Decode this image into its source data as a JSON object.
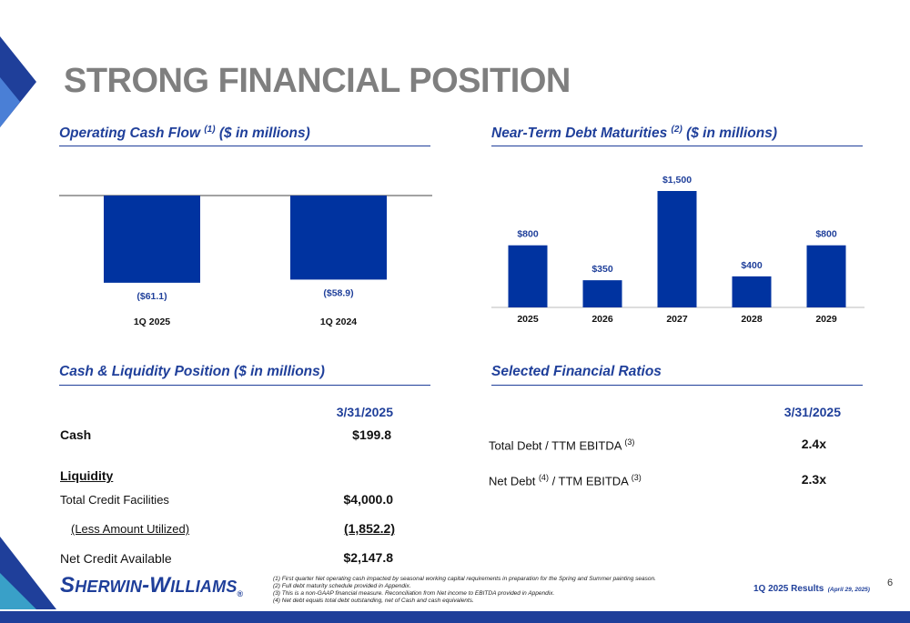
{
  "page": {
    "title": "STRONG FINANCIAL POSITION",
    "page_number": "6",
    "results_label": "1Q 2025 Results",
    "results_date": "(April 29, 2025)"
  },
  "sections": {
    "ocf": {
      "title": "Operating Cash Flow",
      "sup": "(1)",
      "units": "($ in millions)"
    },
    "debt": {
      "title": "Near-Term Debt Maturities",
      "sup": "(2)",
      "units": "($ in millions)"
    },
    "cash": {
      "title": "Cash & Liquidity Position ($ in millions)"
    },
    "ratios": {
      "title": "Selected Financial Ratios"
    }
  },
  "chart_data": [
    {
      "type": "bar",
      "title": "Operating Cash Flow (1) ($ in millions)",
      "categories": [
        "1Q 2025",
        "1Q 2024"
      ],
      "values": [
        -61.1,
        -58.9
      ],
      "data_labels": [
        "($61.1)",
        "($58.9)"
      ],
      "ylim": [
        -65,
        0
      ]
    },
    {
      "type": "bar",
      "title": "Near-Term Debt Maturities (2) ($ in millions)",
      "categories": [
        "2025",
        "2026",
        "2027",
        "2028",
        "2029"
      ],
      "values": [
        800,
        350,
        1500,
        400,
        800
      ],
      "data_labels": [
        "$800",
        "$350",
        "$1,500",
        "$400",
        "$800"
      ],
      "ylim": [
        0,
        1500
      ]
    }
  ],
  "cash_table": {
    "date_header": "3/31/2025",
    "cash_label": "Cash",
    "cash_value": "$199.8",
    "liquidity_label": "Liquidity",
    "tcf_label": "Total Credit Facilities",
    "tcf_value": "$4,000.0",
    "utilized_label": "(Less Amount Utilized)",
    "utilized_value": "(1,852.2)",
    "net_label": "Net Credit Available",
    "net_value": "$2,147.8"
  },
  "ratios_table": {
    "date_header": "3/31/2025",
    "row1_label": "Total Debt / TTM EBITDA",
    "row1_sup": "(3)",
    "row1_value": "2.4x",
    "row2_label_a": "Net Debt",
    "row2_sup_a": "(4)",
    "row2_label_b": "/ TTM EBITDA",
    "row2_sup_b": "(3)",
    "row2_value": "2.3x"
  },
  "footnotes": [
    "(1)   First quarter Net operating cash impacted by seasonal working capital requirements in preparation for the Spring and Summer painting season.",
    "(2)   Full debt maturity schedule provided in Appendix.",
    "(3)   This is a non-GAAP financial measure.  Reconciliation from Net income to EBITDA provided in Appendix.",
    "(4)   Net debt equals total debt outstanding, net of Cash and cash equivalents."
  ],
  "logo": {
    "part1": "S",
    "part2": "HERWIN",
    "part3": "-W",
    "part4": "ILLIAMS",
    "reg": "®"
  },
  "colors": {
    "brand_blue": "#0033a0",
    "title_gray": "#7f7f7f",
    "accent_light": "#3a6fd8"
  }
}
